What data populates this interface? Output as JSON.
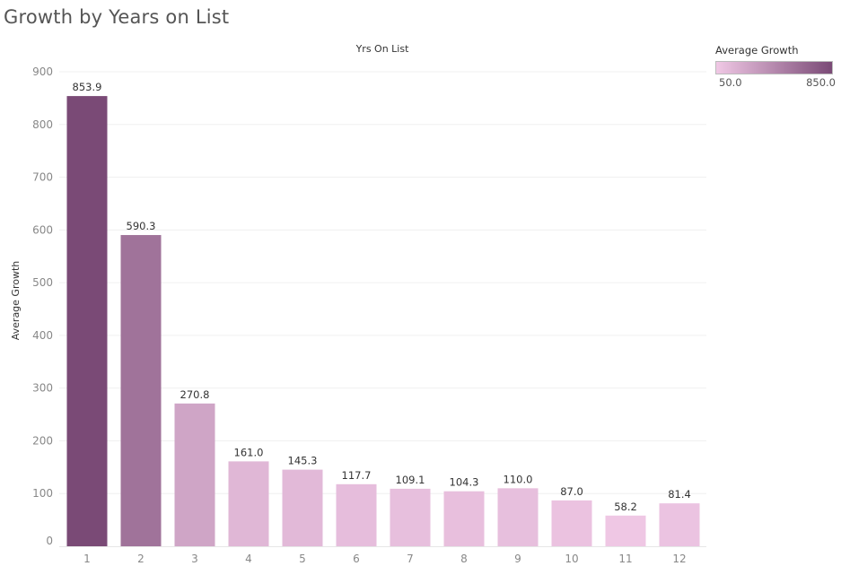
{
  "page": {
    "title": "Growth by Years on List"
  },
  "legend": {
    "title": "Average Growth",
    "min_label": "50.0",
    "max_label": "850.0",
    "min_value": 50,
    "max_value": 850,
    "color_low": "#f0c8e5",
    "color_high": "#7a4a76"
  },
  "chart_data": {
    "type": "bar",
    "title": "",
    "xlabel": "Yrs On List",
    "ylabel": "Average Growth",
    "categories": [
      "1",
      "2",
      "3",
      "4",
      "5",
      "6",
      "7",
      "8",
      "9",
      "10",
      "11",
      "12"
    ],
    "values": [
      853.9,
      590.3,
      270.8,
      161.0,
      145.3,
      117.7,
      109.1,
      104.3,
      110.0,
      87.0,
      58.2,
      81.4
    ],
    "value_labels": [
      "853.9",
      "590.3",
      "270.8",
      "161.0",
      "145.3",
      "117.7",
      "109.1",
      "104.3",
      "110.0",
      "87.0",
      "58.2",
      "81.4"
    ],
    "ylim": [
      0,
      900
    ],
    "yticks": [
      0,
      100,
      200,
      300,
      400,
      500,
      600,
      700,
      800,
      900
    ],
    "grid": true,
    "legend_placement": "top-right"
  }
}
